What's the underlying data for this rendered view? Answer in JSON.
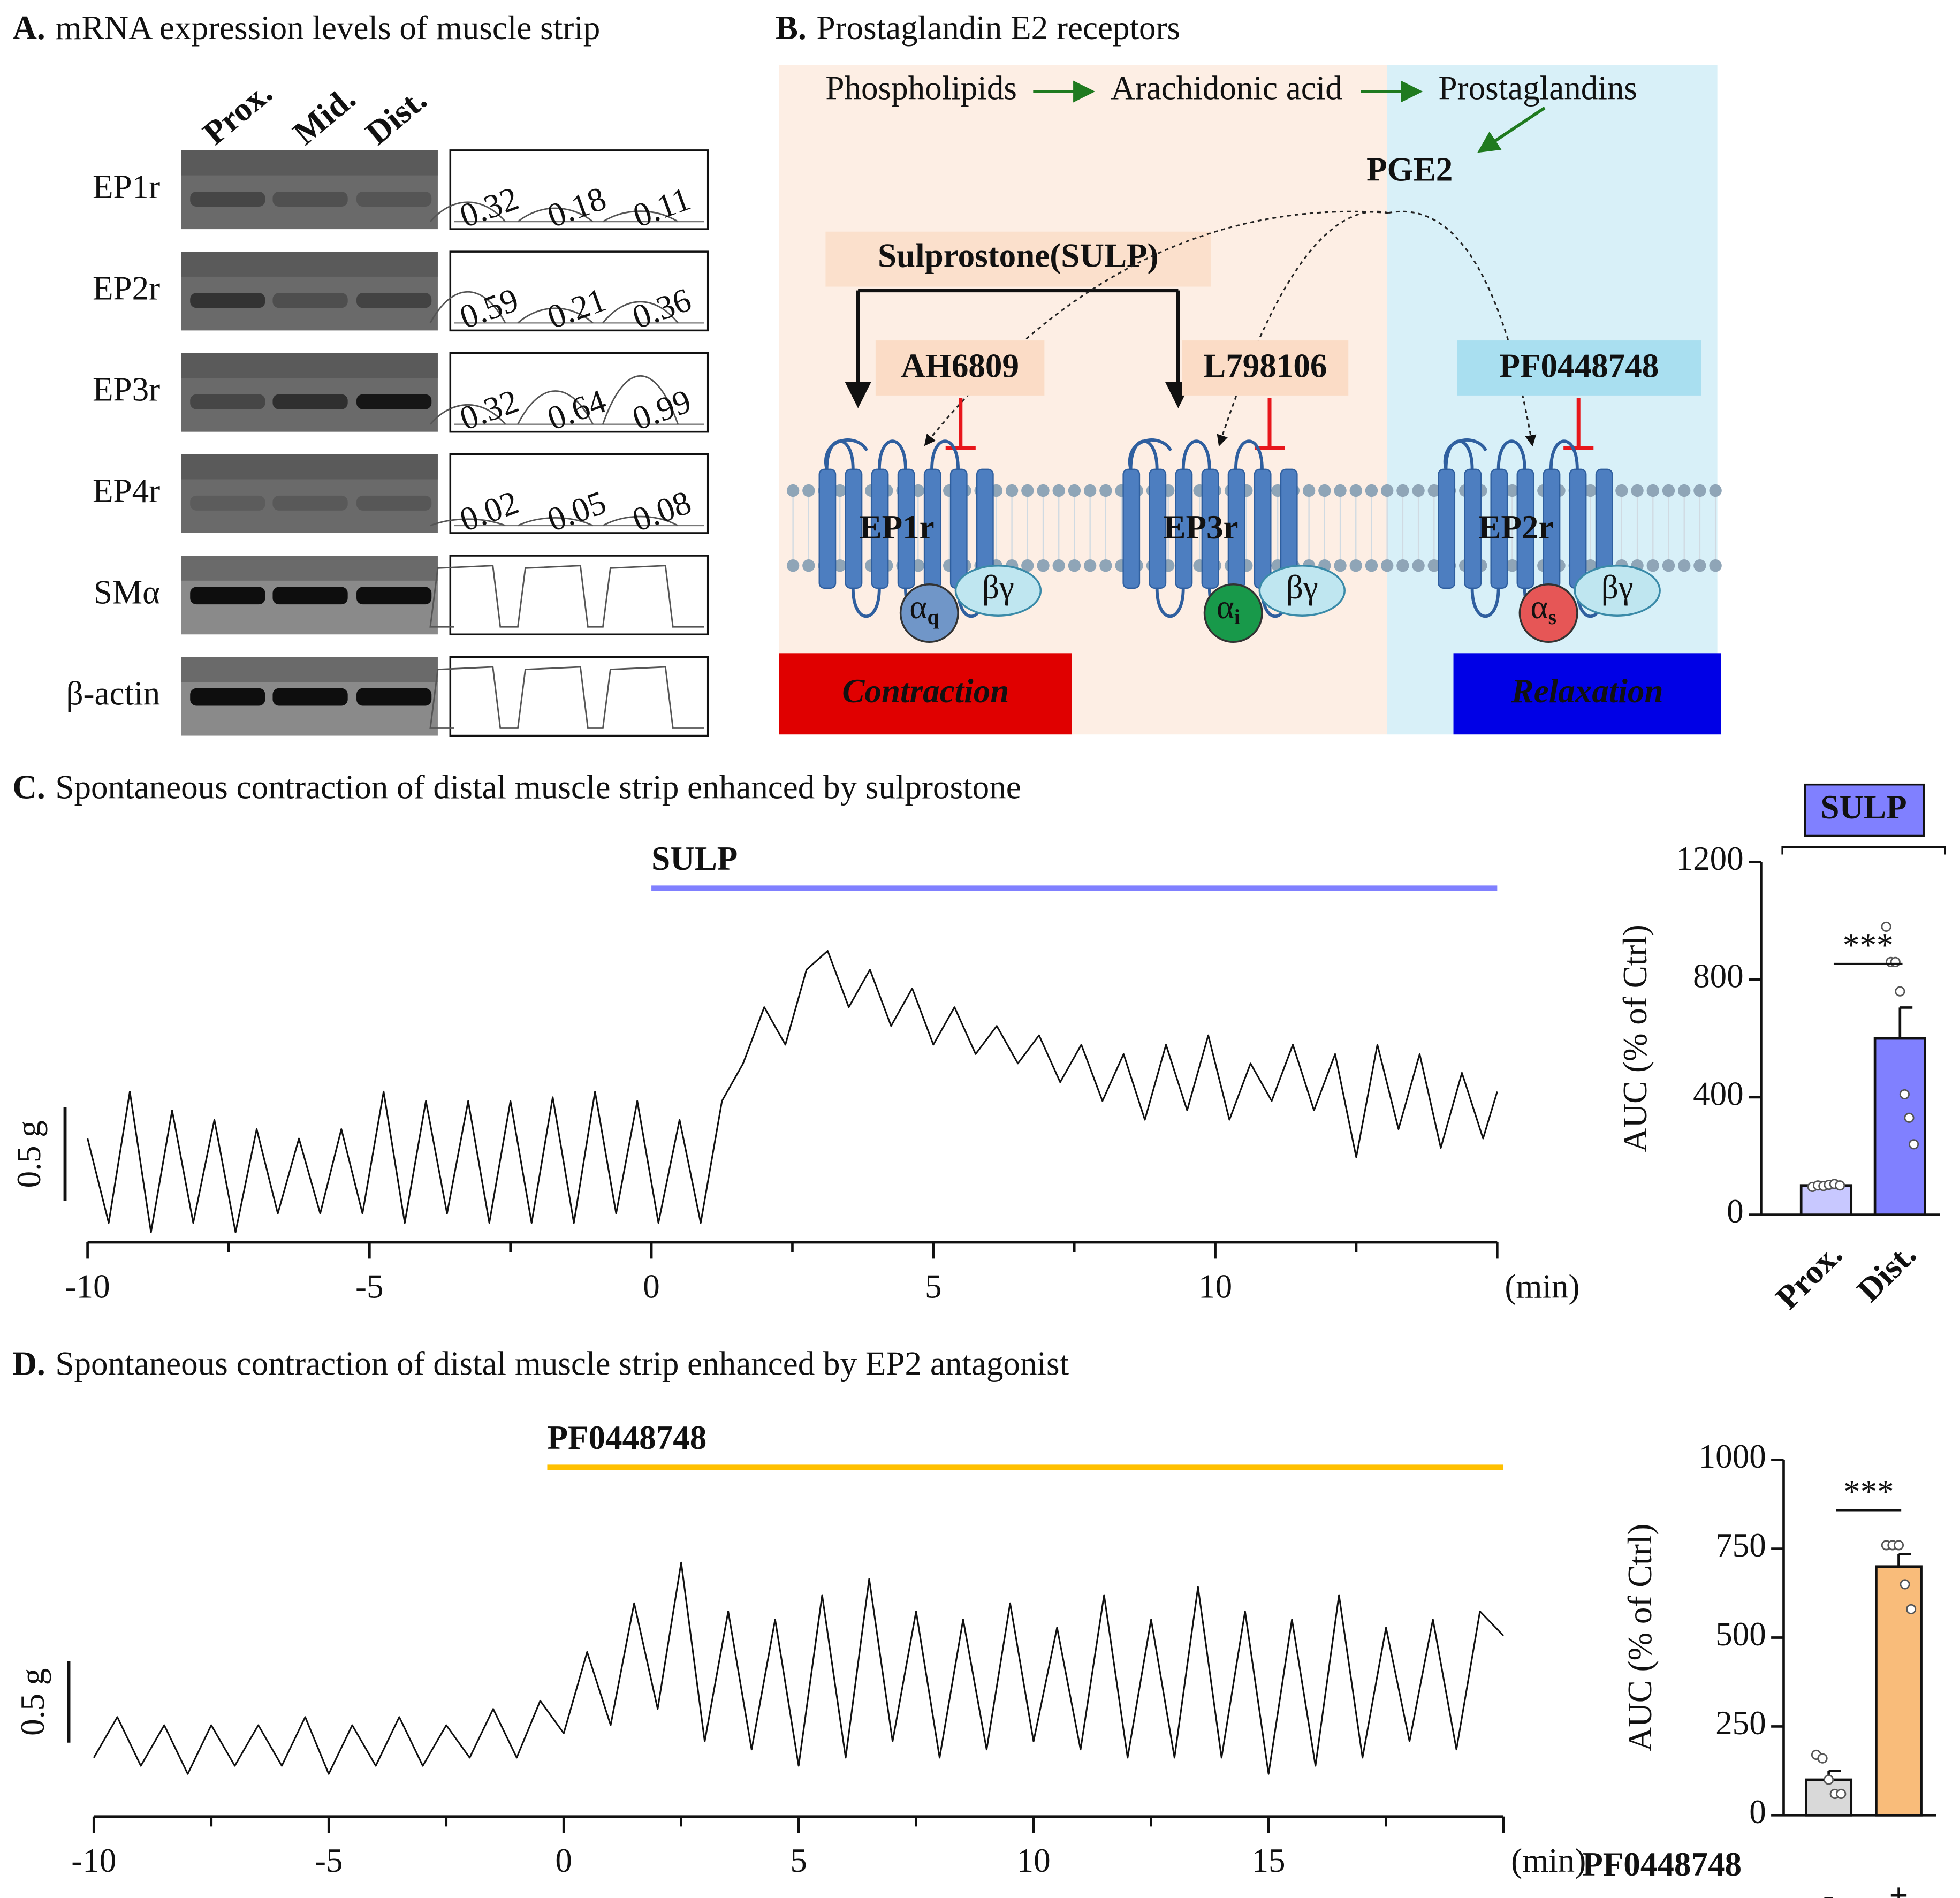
{
  "panel_a": {
    "label": "A.",
    "title": "mRNA expression levels of muscle strip",
    "lanes": [
      "Prox.",
      "Mid.",
      "Dist."
    ],
    "rows": [
      {
        "name": "EP1r",
        "values": [
          0.32,
          0.18,
          0.11
        ]
      },
      {
        "name": "EP2r",
        "values": [
          0.59,
          0.21,
          0.36
        ]
      },
      {
        "name": "EP3r",
        "values": [
          0.32,
          0.64,
          0.99
        ]
      },
      {
        "name": "EP4r",
        "values": [
          0.02,
          0.05,
          0.08
        ]
      },
      {
        "name": "SMα"
      },
      {
        "name": "β-actin"
      }
    ]
  },
  "panel_b": {
    "label": "B.",
    "title": "Prostaglandin E2 receptors",
    "pathway": [
      "Phospholipids",
      "Arachidonic acid",
      "Prostaglandins"
    ],
    "ligand": "PGE2",
    "agonist": "Sulprostone(SULP)",
    "antagonists": [
      "AH6809",
      "L798106",
      "PF0448748"
    ],
    "receptors": [
      "EP1r",
      "EP3r",
      "EP2r"
    ],
    "g_proteins": [
      {
        "alpha": "α",
        "sub": "q",
        "beta": "βγ"
      },
      {
        "alpha": "α",
        "sub": "i",
        "beta": "βγ"
      },
      {
        "alpha": "α",
        "sub": "s",
        "beta": "βγ"
      }
    ],
    "effects": [
      "Contraction",
      "Relaxation"
    ]
  },
  "chart_data": [
    {
      "type": "line",
      "label": "C.",
      "title": "Spontaneous contraction of distal muscle strip enhanced by sulprostone",
      "color": "#111111",
      "x": [
        -10,
        -9.625,
        -9.25,
        -8.875,
        -8.5,
        -8.125,
        -7.75,
        -7.375,
        -7,
        -6.625,
        -6.25,
        -5.875,
        -5.5,
        -5.125,
        -4.75,
        -4.375,
        -4,
        -3.625,
        -3.25,
        -2.875,
        -2.5,
        -2.125,
        -1.75,
        -1.375,
        -1,
        -0.625,
        -0.25,
        0.125,
        0.5,
        0.875,
        1.25,
        1.625,
        2,
        2.375,
        2.75,
        3.125,
        3.5,
        3.875,
        4.25,
        4.625,
        5,
        5.375,
        5.75,
        6.125,
        6.5,
        6.875,
        7.25,
        7.625,
        8,
        8.375,
        8.75,
        9.125,
        9.5,
        9.875,
        10.25,
        10.625,
        11,
        11.375,
        11.75,
        12.125,
        12.5,
        12.875,
        13.25,
        13.625,
        14,
        14.375,
        14.75,
        15
      ],
      "values": [
        0.5,
        0.05,
        0.75,
        0,
        0.65,
        0.05,
        0.6,
        0,
        0.55,
        0.1,
        0.5,
        0.1,
        0.55,
        0.1,
        0.75,
        0.05,
        0.7,
        0.1,
        0.7,
        0.05,
        0.7,
        0.05,
        0.72,
        0.05,
        0.75,
        0.1,
        0.7,
        0.05,
        0.6,
        0.05,
        0.7,
        0.9,
        1.2,
        1,
        1.4,
        1.5,
        1.2,
        1.4,
        1.1,
        1.3,
        1,
        1.2,
        0.95,
        1.1,
        0.9,
        1.05,
        0.8,
        1,
        0.7,
        0.95,
        0.6,
        1,
        0.65,
        1.05,
        0.6,
        0.9,
        0.7,
        1,
        0.65,
        0.95,
        0.4,
        1,
        0.55,
        0.95,
        0.45,
        0.85,
        0.5,
        0.75
      ],
      "xlim": [
        -10,
        15
      ],
      "xticks": [
        -10,
        -5,
        0,
        5,
        10
      ],
      "xminorticks": [
        -7.5,
        -2.5,
        2.5,
        7.5,
        12.5
      ],
      "xlabel": "(min)",
      "ylim": [
        0,
        1.5
      ],
      "scale_bar": {
        "value": 0.5,
        "label": "0.5 g"
      },
      "treatment": {
        "label": "SULP",
        "start": 0,
        "end": 15,
        "color": "#8080ff"
      }
    },
    {
      "type": "bar",
      "label": "SULP",
      "label_color": "#8080ff",
      "categories": [
        "Prox.",
        "Dist."
      ],
      "values": [
        100,
        600
      ],
      "errors": [
        8,
        105
      ],
      "colors": [
        "#c8c8ff",
        "#8080ff"
      ],
      "points": [
        [
          95,
          100,
          98,
          102,
          105,
          100
        ],
        [
          980,
          860,
          860,
          760,
          410,
          330,
          240
        ]
      ],
      "ylabel": "AUC (% of Ctrl)",
      "ylim": [
        0,
        1200
      ],
      "yticks": [
        0,
        400,
        800,
        1200
      ],
      "significance": "***"
    },
    {
      "type": "line",
      "label": "D.",
      "title": "Spontaneous contraction of distal muscle strip enhanced by EP2 antagonist",
      "color": "#111111",
      "x": [
        -10,
        -9.5,
        -9,
        -8.5,
        -8,
        -7.5,
        -7,
        -6.5,
        -6,
        -5.5,
        -5,
        -4.5,
        -4,
        -3.5,
        -3,
        -2.5,
        -2,
        -1.5,
        -1,
        -0.5,
        0,
        0.5,
        1,
        1.5,
        2,
        2.5,
        3,
        3.5,
        4,
        4.5,
        5,
        5.5,
        6,
        6.5,
        7,
        7.5,
        8,
        8.5,
        9,
        9.5,
        10,
        10.5,
        11,
        11.5,
        12,
        12.5,
        13,
        13.5,
        14,
        14.5,
        15,
        15.5,
        16,
        16.5,
        17,
        17.5,
        18,
        18.5,
        19,
        19.5,
        20
      ],
      "values": [
        0.1,
        0.35,
        0.05,
        0.3,
        0,
        0.3,
        0.05,
        0.3,
        0.05,
        0.35,
        0,
        0.3,
        0.05,
        0.35,
        0.05,
        0.3,
        0.1,
        0.4,
        0.1,
        0.45,
        0.25,
        0.75,
        0.3,
        1.05,
        0.4,
        1.3,
        0.2,
        1,
        0.15,
        0.95,
        0.05,
        1.1,
        0.1,
        1.2,
        0.2,
        1,
        0.1,
        0.95,
        0.15,
        1.05,
        0.2,
        0.9,
        0.15,
        1.1,
        0.1,
        0.95,
        0.1,
        1.15,
        0.1,
        1,
        0,
        0.95,
        0.05,
        1.1,
        0.1,
        0.9,
        0.2,
        0.95,
        0.15,
        1,
        0.85
      ],
      "xlim": [
        -10,
        20
      ],
      "xticks": [
        -10,
        -5,
        0,
        5,
        10,
        15
      ],
      "xminorticks": [
        -7.5,
        -2.5,
        2.5,
        7.5,
        12.5,
        17.5
      ],
      "xlabel": "(min)",
      "ylim": [
        0,
        1.5
      ],
      "scale_bar": {
        "value": 0.5,
        "label": "0.5 g"
      },
      "treatment": {
        "label": "PF0448748",
        "start": -0.35,
        "end": 20,
        "color": "#ffc000"
      }
    },
    {
      "type": "bar",
      "xlabel": "PF0448748",
      "categories": [
        "-",
        "+"
      ],
      "values": [
        100,
        700
      ],
      "errors": [
        25,
        35
      ],
      "colors": [
        "#d9d9d9",
        "#f9bc7a"
      ],
      "points": [
        [
          170,
          160,
          100,
          60,
          60
        ],
        [
          760,
          760,
          760,
          650,
          580
        ]
      ],
      "ylabel": "AUC (% of Ctrl)",
      "ylim": [
        0,
        1000
      ],
      "yticks": [
        0,
        250,
        500,
        750,
        1000
      ],
      "significance": "***"
    }
  ]
}
